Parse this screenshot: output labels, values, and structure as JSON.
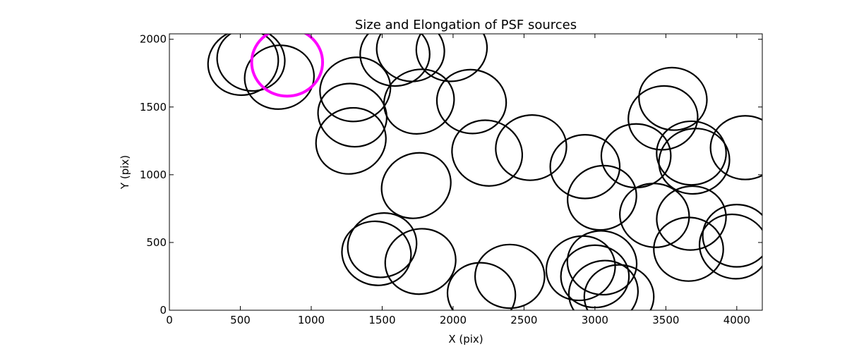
{
  "chart_data": {
    "type": "scatter",
    "title": "Size and Elongation of PSF sources",
    "xlabel": "X (pix)",
    "ylabel": "Y (pix)",
    "xlim": [
      0,
      4180
    ],
    "ylim": [
      0,
      2040
    ],
    "x_ticks": [
      0,
      500,
      1000,
      1500,
      2000,
      2500,
      3000,
      3500,
      4000
    ],
    "y_ticks": [
      0,
      500,
      1000,
      1500,
      2000
    ],
    "grid": false,
    "legend": "none",
    "colors": {
      "ellipse": "#000000",
      "highlight": "#ff00ff"
    },
    "series": [
      {
        "color": "#000000",
        "points": [
          {
            "x": 520,
            "y": 1830,
            "a": 250,
            "b": 240,
            "angle": 20
          },
          {
            "x": 575,
            "y": 1850,
            "a": 240,
            "b": 230,
            "angle": -15
          },
          {
            "x": 775,
            "y": 1720,
            "a": 245,
            "b": 235,
            "angle": 10
          },
          {
            "x": 1310,
            "y": 1630,
            "a": 250,
            "b": 235,
            "angle": 15
          },
          {
            "x": 1290,
            "y": 1440,
            "a": 245,
            "b": 230,
            "angle": -20
          },
          {
            "x": 1280,
            "y": 1250,
            "a": 250,
            "b": 240,
            "angle": 25
          },
          {
            "x": 1590,
            "y": 1890,
            "a": 245,
            "b": 235,
            "angle": 0
          },
          {
            "x": 1700,
            "y": 1920,
            "a": 240,
            "b": 230,
            "angle": -15
          },
          {
            "x": 1990,
            "y": 1930,
            "a": 250,
            "b": 240,
            "angle": 10
          },
          {
            "x": 1760,
            "y": 1540,
            "a": 250,
            "b": 235,
            "angle": 20
          },
          {
            "x": 2130,
            "y": 1540,
            "a": 245,
            "b": 235,
            "angle": -10
          },
          {
            "x": 1740,
            "y": 920,
            "a": 250,
            "b": 235,
            "angle": 30
          },
          {
            "x": 2240,
            "y": 1160,
            "a": 250,
            "b": 240,
            "angle": -20
          },
          {
            "x": 2550,
            "y": 1200,
            "a": 250,
            "b": 240,
            "angle": 10
          },
          {
            "x": 2930,
            "y": 1060,
            "a": 245,
            "b": 235,
            "angle": 0
          },
          {
            "x": 3050,
            "y": 830,
            "a": 245,
            "b": 235,
            "angle": 20
          },
          {
            "x": 3290,
            "y": 1140,
            "a": 245,
            "b": 235,
            "angle": 0
          },
          {
            "x": 3480,
            "y": 1420,
            "a": 245,
            "b": 235,
            "angle": 10
          },
          {
            "x": 3550,
            "y": 1560,
            "a": 240,
            "b": 230,
            "angle": -10
          },
          {
            "x": 3680,
            "y": 1160,
            "a": 245,
            "b": 235,
            "angle": 0
          },
          {
            "x": 3700,
            "y": 1100,
            "a": 250,
            "b": 240,
            "angle": 15
          },
          {
            "x": 4060,
            "y": 1200,
            "a": 245,
            "b": 235,
            "angle": 0
          },
          {
            "x": 3420,
            "y": 700,
            "a": 245,
            "b": 235,
            "angle": -10
          },
          {
            "x": 3680,
            "y": 680,
            "a": 245,
            "b": 235,
            "angle": 10
          },
          {
            "x": 3660,
            "y": 450,
            "a": 245,
            "b": 235,
            "angle": 0
          },
          {
            "x": 4000,
            "y": 550,
            "a": 240,
            "b": 230,
            "angle": 0
          },
          {
            "x": 3980,
            "y": 470,
            "a": 245,
            "b": 235,
            "angle": -20
          },
          {
            "x": 1500,
            "y": 480,
            "a": 245,
            "b": 235,
            "angle": 20
          },
          {
            "x": 1460,
            "y": 420,
            "a": 245,
            "b": 235,
            "angle": -15
          },
          {
            "x": 1770,
            "y": 360,
            "a": 250,
            "b": 240,
            "angle": 15
          },
          {
            "x": 2400,
            "y": 250,
            "a": 245,
            "b": 235,
            "angle": 0
          },
          {
            "x": 2200,
            "y": 120,
            "a": 240,
            "b": 230,
            "angle": -10
          },
          {
            "x": 2900,
            "y": 310,
            "a": 245,
            "b": 235,
            "angle": 20
          },
          {
            "x": 3050,
            "y": 350,
            "a": 245,
            "b": 235,
            "angle": -10
          },
          {
            "x": 3000,
            "y": 250,
            "a": 240,
            "b": 230,
            "angle": 0
          },
          {
            "x": 3060,
            "y": 130,
            "a": 245,
            "b": 235,
            "angle": 15
          },
          {
            "x": 3170,
            "y": 100,
            "a": 245,
            "b": 235,
            "angle": 0
          }
        ]
      },
      {
        "color": "#ff00ff",
        "points": [
          {
            "x": 830,
            "y": 1830,
            "a": 250,
            "b": 250,
            "angle": 0
          }
        ]
      }
    ]
  }
}
